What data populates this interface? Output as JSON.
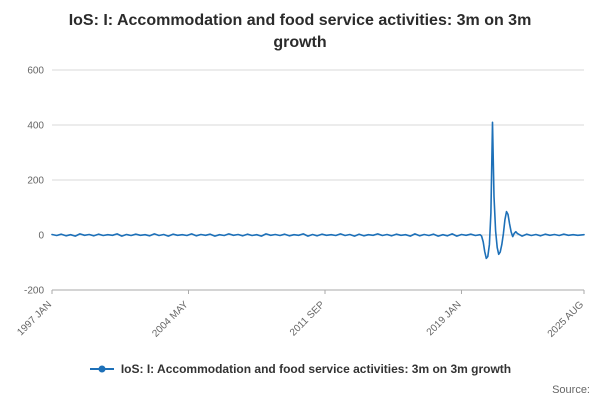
{
  "title": "IoS: I: Accommodation and food service activities: 3m on 3m growth",
  "legend": {
    "label": "IoS: I: Accommodation and food service activities: 3m on 3m growth"
  },
  "source": {
    "label": "Source:"
  },
  "colors": {
    "line": "#1d70b8",
    "grid": "#d9d9d9",
    "axis": "#aaaaaa",
    "tick_text": "#666666",
    "title_text": "#2b2b2b"
  },
  "chart_data": {
    "type": "line",
    "title": "IoS: I: Accommodation and food service activities: 3m on 3m growth",
    "xlabel": "",
    "ylabel": "",
    "xlim": [
      1997.0,
      2025.583
    ],
    "ylim": [
      -200,
      600
    ],
    "yticks": [
      -200,
      0,
      200,
      400,
      600
    ],
    "xticks": [
      {
        "x": 1997.0,
        "label": "1997 JAN"
      },
      {
        "x": 2004.333,
        "label": "2004 MAY"
      },
      {
        "x": 2011.667,
        "label": "2011 SEP"
      },
      {
        "x": 2019.0,
        "label": "2019 JAN"
      },
      {
        "x": 2025.583,
        "label": "2025 AUG"
      }
    ],
    "grid": "horizontal",
    "legend_position": "bottom",
    "series": [
      {
        "name": "IoS: I: Accommodation and food service activities: 3m on 3m growth",
        "points": [
          [
            1997.0,
            2
          ],
          [
            1997.25,
            -2
          ],
          [
            1997.5,
            3
          ],
          [
            1997.75,
            -3
          ],
          [
            1998.0,
            1
          ],
          [
            1998.25,
            -4
          ],
          [
            1998.5,
            4
          ],
          [
            1998.75,
            -1
          ],
          [
            1999.0,
            2
          ],
          [
            1999.25,
            -3
          ],
          [
            1999.5,
            3
          ],
          [
            1999.75,
            -2
          ],
          [
            2000.0,
            1
          ],
          [
            2000.25,
            -1
          ],
          [
            2000.5,
            4
          ],
          [
            2000.75,
            -4
          ],
          [
            2001.0,
            2
          ],
          [
            2001.25,
            -2
          ],
          [
            2001.5,
            3
          ],
          [
            2001.75,
            -1
          ],
          [
            2002.0,
            1
          ],
          [
            2002.25,
            -3
          ],
          [
            2002.5,
            4
          ],
          [
            2002.75,
            -2
          ],
          [
            2003.0,
            2
          ],
          [
            2003.25,
            -4
          ],
          [
            2003.5,
            3
          ],
          [
            2003.75,
            -1
          ],
          [
            2004.0,
            1
          ],
          [
            2004.25,
            -2
          ],
          [
            2004.5,
            4
          ],
          [
            2004.75,
            -3
          ],
          [
            2005.0,
            2
          ],
          [
            2005.25,
            -1
          ],
          [
            2005.5,
            3
          ],
          [
            2005.75,
            -4
          ],
          [
            2006.0,
            1
          ],
          [
            2006.25,
            -2
          ],
          [
            2006.5,
            4
          ],
          [
            2006.75,
            -1
          ],
          [
            2007.0,
            2
          ],
          [
            2007.25,
            -3
          ],
          [
            2007.5,
            3
          ],
          [
            2007.75,
            -2
          ],
          [
            2008.0,
            1
          ],
          [
            2008.25,
            -4
          ],
          [
            2008.5,
            4
          ],
          [
            2008.75,
            -1
          ],
          [
            2009.0,
            2
          ],
          [
            2009.25,
            -2
          ],
          [
            2009.5,
            3
          ],
          [
            2009.75,
            -3
          ],
          [
            2010.0,
            1
          ],
          [
            2010.25,
            -1
          ],
          [
            2010.5,
            4
          ],
          [
            2010.75,
            -4
          ],
          [
            2011.0,
            2
          ],
          [
            2011.25,
            -3
          ],
          [
            2011.5,
            3
          ],
          [
            2011.75,
            -1
          ],
          [
            2012.0,
            1
          ],
          [
            2012.25,
            -2
          ],
          [
            2012.5,
            4
          ],
          [
            2012.75,
            -2
          ],
          [
            2013.0,
            2
          ],
          [
            2013.25,
            -4
          ],
          [
            2013.5,
            3
          ],
          [
            2013.75,
            -3
          ],
          [
            2014.0,
            1
          ],
          [
            2014.25,
            -1
          ],
          [
            2014.5,
            4
          ],
          [
            2014.75,
            -2
          ],
          [
            2015.0,
            2
          ],
          [
            2015.25,
            -3
          ],
          [
            2015.5,
            3
          ],
          [
            2015.75,
            -1
          ],
          [
            2016.0,
            1
          ],
          [
            2016.25,
            -4
          ],
          [
            2016.5,
            4
          ],
          [
            2016.75,
            -3
          ],
          [
            2017.0,
            2
          ],
          [
            2017.25,
            -2
          ],
          [
            2017.5,
            3
          ],
          [
            2017.75,
            -4
          ],
          [
            2018.0,
            1
          ],
          [
            2018.25,
            -3
          ],
          [
            2018.5,
            4
          ],
          [
            2018.75,
            -4
          ],
          [
            2019.0,
            2
          ],
          [
            2019.25,
            -1
          ],
          [
            2019.5,
            3
          ],
          [
            2019.75,
            -2
          ],
          [
            2020.0,
            1
          ],
          [
            2020.083,
            -4
          ],
          [
            2020.167,
            -25
          ],
          [
            2020.25,
            -60
          ],
          [
            2020.333,
            -85
          ],
          [
            2020.417,
            -78
          ],
          [
            2020.5,
            -35
          ],
          [
            2020.583,
            80
          ],
          [
            2020.667,
            410
          ],
          [
            2020.75,
            140
          ],
          [
            2020.833,
            15
          ],
          [
            2020.917,
            -45
          ],
          [
            2021.0,
            -70
          ],
          [
            2021.083,
            -62
          ],
          [
            2021.167,
            -35
          ],
          [
            2021.25,
            5
          ],
          [
            2021.333,
            55
          ],
          [
            2021.417,
            85
          ],
          [
            2021.5,
            75
          ],
          [
            2021.583,
            40
          ],
          [
            2021.667,
            12
          ],
          [
            2021.75,
            -6
          ],
          [
            2021.833,
            6
          ],
          [
            2021.917,
            12
          ],
          [
            2022.0,
            6
          ],
          [
            2022.25,
            -4
          ],
          [
            2022.5,
            3
          ],
          [
            2022.75,
            -2
          ],
          [
            2023.0,
            2
          ],
          [
            2023.25,
            -3
          ],
          [
            2023.5,
            3
          ],
          [
            2023.75,
            -1
          ],
          [
            2024.0,
            2
          ],
          [
            2024.25,
            -2
          ],
          [
            2024.5,
            3
          ],
          [
            2024.75,
            -1
          ],
          [
            2025.0,
            1
          ],
          [
            2025.25,
            -1
          ],
          [
            2025.583,
            1
          ]
        ]
      }
    ]
  }
}
